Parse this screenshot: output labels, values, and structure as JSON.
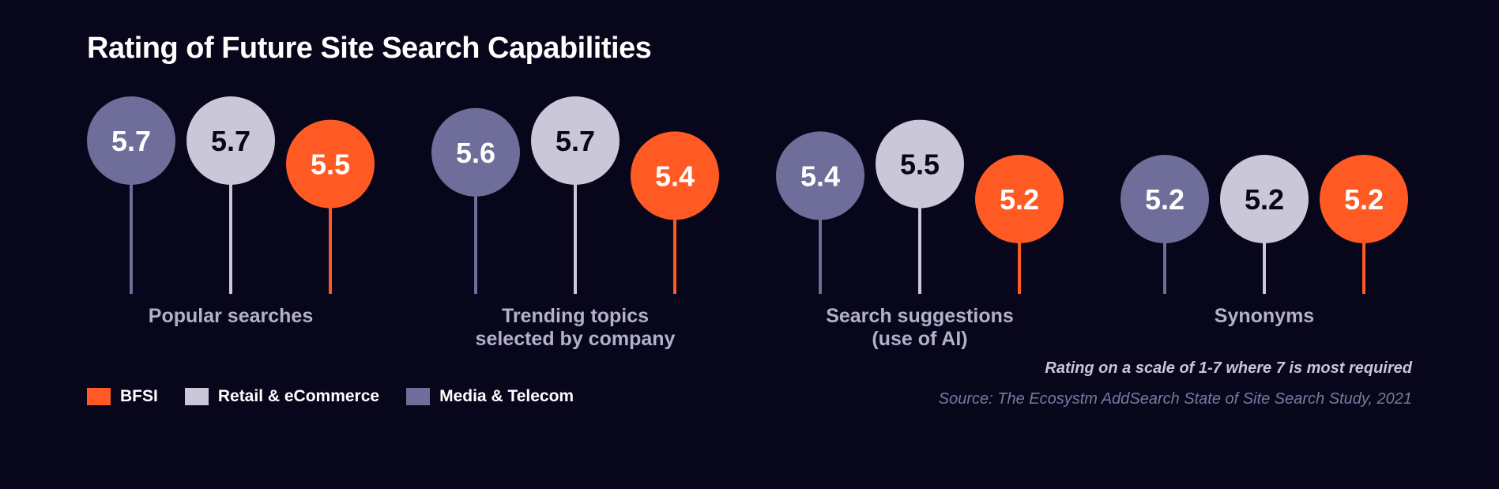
{
  "chart_data": {
    "type": "lollipop",
    "title": "Rating of Future Site Search Capabilities",
    "categories": [
      [
        "Popular searches"
      ],
      [
        "Trending topics",
        "selected by company"
      ],
      [
        "Search suggestions",
        "(use of AI)"
      ],
      [
        "Synonyms"
      ]
    ],
    "series": [
      {
        "name": "Media & Telecom",
        "color": "#6f6d99",
        "text_color": "#ffffff",
        "values": [
          5.7,
          5.6,
          5.4,
          5.2
        ]
      },
      {
        "name": "Retail & eCommerce",
        "color": "#c9c7d8",
        "text_color": "#07061a",
        "values": [
          5.7,
          5.7,
          5.5,
          5.2
        ]
      },
      {
        "name": "BFSI",
        "color": "#ff5a24",
        "text_color": "#ffffff",
        "values": [
          5.5,
          5.4,
          5.2,
          5.2
        ]
      }
    ],
    "legend_order": [
      "BFSI",
      "Retail & eCommerce",
      "Media & Telecom"
    ],
    "note": "Rating on a scale of 1-7 where 7 is most required",
    "source": "Source: The Ecosystm AddSearch State of Site Search Study, 2021"
  }
}
